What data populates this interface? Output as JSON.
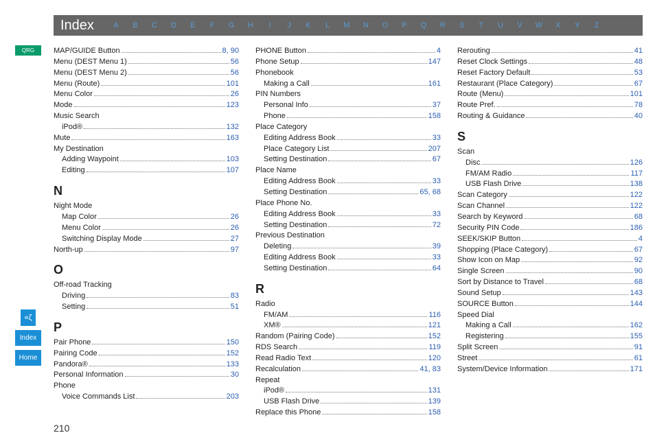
{
  "header": {
    "title": "Index",
    "letters": [
      "A",
      "B",
      "C",
      "D",
      "E",
      "F",
      "G",
      "H",
      "I",
      "J",
      "K",
      "L",
      "M",
      "N",
      "O",
      "P",
      "Q",
      "R",
      "S",
      "T",
      "U",
      "V",
      "W",
      "X",
      "Y",
      "Z"
    ]
  },
  "sidebar": {
    "qrg": "QRG",
    "voice_glyph": "«ζ",
    "index": "Index",
    "home": "Home"
  },
  "page_number": "210",
  "link_color": "#2a5db0",
  "columns": [
    {
      "groups": [
        {
          "heading": null,
          "items": [
            {
              "label": "MAP/GUIDE Button",
              "pages": "8, 90"
            },
            {
              "label": "Menu (DEST Menu 1)",
              "pages": "56"
            },
            {
              "label": "Menu (DEST Menu 2)",
              "pages": "56"
            },
            {
              "label": "Menu (Route)",
              "pages": "101"
            },
            {
              "label": "Menu Color",
              "pages": "26"
            },
            {
              "label": "Mode",
              "pages": "123"
            },
            {
              "label": "Music Search",
              "header": true
            },
            {
              "label": "iPod®",
              "pages": "132",
              "sub": true
            },
            {
              "label": "Mute",
              "pages": "163"
            },
            {
              "label": "My Destination",
              "header": true
            },
            {
              "label": "Adding Waypoint",
              "pages": "103",
              "sub": true
            },
            {
              "label": "Editing",
              "pages": "107",
              "sub": true
            }
          ]
        },
        {
          "heading": "N",
          "items": [
            {
              "label": "Night Mode",
              "header": true
            },
            {
              "label": "Map Color",
              "pages": "26",
              "sub": true
            },
            {
              "label": "Menu Color",
              "pages": "26",
              "sub": true
            },
            {
              "label": "Switching Display Mode",
              "pages": "27",
              "sub": true
            },
            {
              "label": "North-up",
              "pages": "97"
            }
          ]
        },
        {
          "heading": "O",
          "items": [
            {
              "label": "Off-road Tracking",
              "header": true
            },
            {
              "label": "Driving",
              "pages": "83",
              "sub": true
            },
            {
              "label": "Setting",
              "pages": "51",
              "sub": true
            }
          ]
        },
        {
          "heading": "P",
          "items": [
            {
              "label": "Pair Phone",
              "pages": "150"
            },
            {
              "label": "Pairing Code",
              "pages": "152"
            },
            {
              "label": "Pandora®",
              "pages": "133"
            },
            {
              "label": "Personal Information",
              "pages": "30"
            },
            {
              "label": "Phone",
              "header": true
            },
            {
              "label": "Voice Commands List",
              "pages": "203",
              "sub": true
            }
          ]
        }
      ]
    },
    {
      "groups": [
        {
          "heading": null,
          "items": [
            {
              "label": "PHONE Button",
              "pages": "4"
            },
            {
              "label": "Phone Setup",
              "pages": "147"
            },
            {
              "label": "Phonebook",
              "header": true
            },
            {
              "label": "Making a Call",
              "pages": "161",
              "sub": true
            },
            {
              "label": "PIN Numbers",
              "header": true
            },
            {
              "label": "Personal Info",
              "pages": "37",
              "sub": true
            },
            {
              "label": "Phone",
              "pages": "158",
              "sub": true
            },
            {
              "label": "Place Category",
              "header": true
            },
            {
              "label": "Editing Address Book",
              "pages": "33",
              "sub": true
            },
            {
              "label": "Place Category List",
              "pages": "207",
              "sub": true
            },
            {
              "label": "Setting Destination",
              "pages": "67",
              "sub": true
            },
            {
              "label": "Place Name",
              "header": true
            },
            {
              "label": "Editing Address Book",
              "pages": "33",
              "sub": true
            },
            {
              "label": "Setting Destination",
              "pages": "65, 68",
              "sub": true
            },
            {
              "label": "Place Phone No.",
              "header": true
            },
            {
              "label": "Editing Address Book",
              "pages": "33",
              "sub": true
            },
            {
              "label": "Setting Destination",
              "pages": "72",
              "sub": true
            },
            {
              "label": "Previous Destination",
              "header": true
            },
            {
              "label": "Deleting",
              "pages": "39",
              "sub": true
            },
            {
              "label": "Editing Address Book",
              "pages": "33",
              "sub": true
            },
            {
              "label": "Setting Destination",
              "pages": "64",
              "sub": true
            }
          ]
        },
        {
          "heading": "R",
          "items": [
            {
              "label": "Radio",
              "header": true
            },
            {
              "label": "FM/AM",
              "pages": "116",
              "sub": true
            },
            {
              "label": "XM®",
              "pages": "121",
              "sub": true
            },
            {
              "label": "Random (Pairing Code)",
              "pages": "152"
            },
            {
              "label": "RDS Search",
              "pages": "119"
            },
            {
              "label": "Read Radio Text",
              "pages": "120"
            },
            {
              "label": "Recalculation",
              "pages": "41, 83"
            },
            {
              "label": "Repeat",
              "header": true
            },
            {
              "label": "iPod®",
              "pages": "131",
              "sub": true
            },
            {
              "label": "USB Flash Drive",
              "pages": "139",
              "sub": true
            },
            {
              "label": "Replace this Phone",
              "pages": "158"
            }
          ]
        }
      ]
    },
    {
      "groups": [
        {
          "heading": null,
          "items": [
            {
              "label": "Rerouting",
              "pages": "41"
            },
            {
              "label": "Reset Clock Settings",
              "pages": "48"
            },
            {
              "label": "Reset Factory Default",
              "pages": "53"
            },
            {
              "label": "Restaurant (Place Category)",
              "pages": "67"
            },
            {
              "label": "Route (Menu)",
              "pages": "101"
            },
            {
              "label": "Route Pref.",
              "pages": "78"
            },
            {
              "label": "Routing & Guidance",
              "pages": "40"
            }
          ]
        },
        {
          "heading": "S",
          "items": [
            {
              "label": "Scan",
              "header": true
            },
            {
              "label": "Disc",
              "pages": "126",
              "sub": true
            },
            {
              "label": "FM/AM Radio",
              "pages": "117",
              "sub": true
            },
            {
              "label": "USB Flash Drive",
              "pages": "138",
              "sub": true
            },
            {
              "label": "Scan Category",
              "pages": "122"
            },
            {
              "label": "Scan Channel",
              "pages": "122"
            },
            {
              "label": "Search by Keyword",
              "pages": "68"
            },
            {
              "label": "Security PIN Code",
              "pages": "186"
            },
            {
              "label": "SEEK/SKIP Button",
              "pages": "4"
            },
            {
              "label": "Shopping (Place Category)",
              "pages": "67"
            },
            {
              "label": "Show Icon on Map",
              "pages": "92"
            },
            {
              "label": "Single Screen",
              "pages": "90"
            },
            {
              "label": "Sort by Distance to Travel",
              "pages": "68"
            },
            {
              "label": "Sound Setup",
              "pages": "143"
            },
            {
              "label": "SOURCE Button",
              "pages": "144"
            },
            {
              "label": "Speed Dial",
              "header": true
            },
            {
              "label": "Making a Call",
              "pages": "162",
              "sub": true
            },
            {
              "label": "Registering",
              "pages": "155",
              "sub": true
            },
            {
              "label": "Split Screen",
              "pages": "91"
            },
            {
              "label": "Street",
              "pages": "61"
            },
            {
              "label": "System/Device Information",
              "pages": "171"
            }
          ]
        }
      ]
    }
  ]
}
